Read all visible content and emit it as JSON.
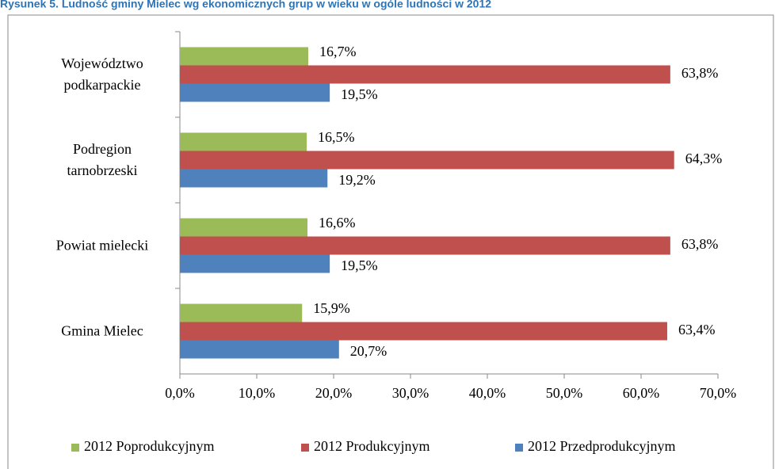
{
  "chart_data": {
    "type": "barh",
    "title": "Rysunek 5. Ludność gminy Mielec wg ekonomicznych grup w wieku w ogóle ludności w 2012",
    "categories": [
      "Województwo podkarpackie",
      "Podregion tarnobrzeski",
      "Powiat mielecki",
      "Gmina Mielec"
    ],
    "series": [
      {
        "name": "2012 Poprodukcyjnym",
        "color": "#9bbb59",
        "values": [
          16.7,
          16.5,
          16.6,
          15.9
        ],
        "value_labels": [
          "16,7%",
          "16,5%",
          "16,6%",
          "15,9%"
        ]
      },
      {
        "name": "2012 Produkcyjnym",
        "color": "#c0504d",
        "values": [
          63.8,
          64.3,
          63.8,
          63.4
        ],
        "value_labels": [
          "63,8%",
          "64,3%",
          "63,8%",
          "63,4%"
        ]
      },
      {
        "name": "2012 Przedprodukcyjnym",
        "color": "#4f81bd",
        "values": [
          19.5,
          19.2,
          19.5,
          20.7
        ],
        "value_labels": [
          "19,5%",
          "19,2%",
          "19,5%",
          "20,7%"
        ]
      }
    ],
    "xlim": [
      0,
      70
    ],
    "xticks": [
      {
        "value": 0,
        "label": "0,0%"
      },
      {
        "value": 10,
        "label": "10,0%"
      },
      {
        "value": 20,
        "label": "20,0%"
      },
      {
        "value": 30,
        "label": "30,0%"
      },
      {
        "value": 40,
        "label": "40,0%"
      },
      {
        "value": 50,
        "label": "50,0%"
      },
      {
        "value": 60,
        "label": "60,0%"
      },
      {
        "value": 70,
        "label": "70,0%"
      }
    ],
    "legend": "bottom"
  }
}
